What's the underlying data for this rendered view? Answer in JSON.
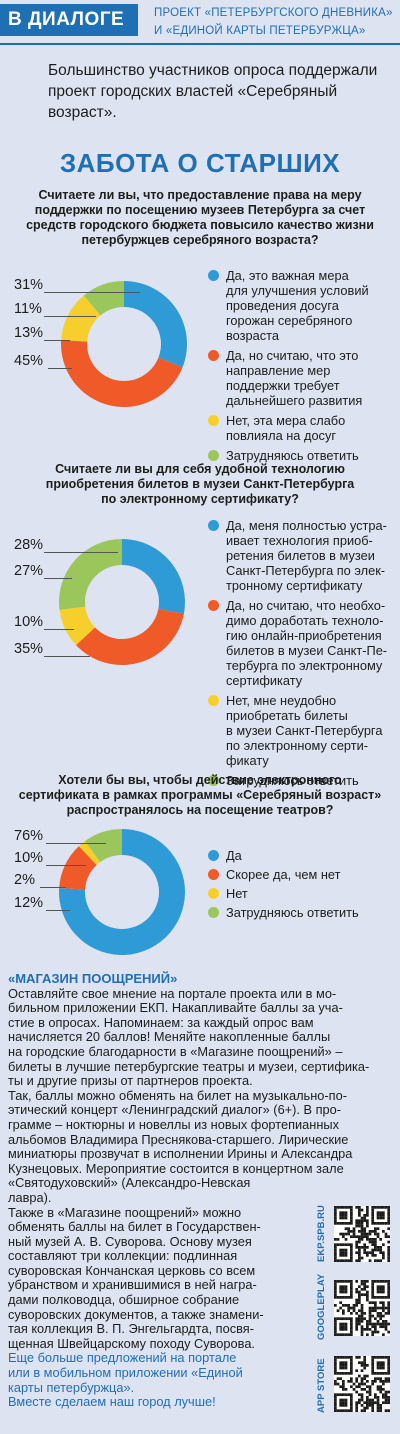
{
  "header": {
    "tag": "В ДИАЛОГЕ",
    "project_line1": "ПРОЕКТ «ПЕТЕРБУРГСКОГО ДНЕВНИКА»",
    "project_line2": "И «ЕДИНОЙ КАРТЫ ПЕТЕРБУРЖЦА»"
  },
  "lead": "Большинство участников опроса поддержали проект городских властей «Серебряный возраст».",
  "title": "ЗАБОТА О СТАРШИХ",
  "colors": {
    "blue": "#2f9bd6",
    "orange": "#f05a28",
    "yellow": "#f7cf2d",
    "green": "#9ac65b",
    "accent": "#1f6fb5"
  },
  "chart_data": [
    {
      "type": "pie",
      "title": "Считаете ли вы, что предоставление права на меру поддержки по посещению музеев Петербурга за счет средств городского бюджета повысило качество жизни петербуржцев серебряного возраста?",
      "series": [
        {
          "name": "Да, это важная мера для улучшения условий проведения досуга горожан серебряного возраста",
          "value": 31,
          "label": "31%"
        },
        {
          "name": "Да, но считаю, что это направление мер поддержки требует дальнейшего развития",
          "value": 45,
          "label": "45%"
        },
        {
          "name": "Нет, эта мера слабо повлияла на досуг",
          "value": 13,
          "label": "13%"
        },
        {
          "name": "Затрудняюсь ответить",
          "value": 11,
          "label": "11%"
        }
      ]
    },
    {
      "type": "pie",
      "title": "Считаете ли вы для себя удобной технологию приобретения билетов в музеи Санкт-Петербурга по электронному сертификату?",
      "series": [
        {
          "name": "Да, меня полностью устраивает технология приобретения билетов в музеи Санкт-Петербурга по электронному сертификату",
          "value": 28,
          "label": "28%"
        },
        {
          "name": "Да, но считаю, что необходимо доработать технологию онлайн-приобретения билетов в музеи Санкт-Петербурга по электронному сертификату",
          "value": 35,
          "label": "35%"
        },
        {
          "name": "Нет, мне неудобно приобретать билеты в музеи Санкт-Петербурга по электронному сертификату",
          "value": 10,
          "label": "10%"
        },
        {
          "name": "Затрудняюсь ответить",
          "value": 27,
          "label": "27%"
        }
      ]
    },
    {
      "type": "pie",
      "title": "Хотели бы вы, чтобы действие электронного сертификата в рамках программы «Серебряный возраст» распространялось на посещение театров?",
      "series": [
        {
          "name": "Да",
          "value": 76,
          "label": "76%"
        },
        {
          "name": "Скорее да, чем нет",
          "value": 12,
          "label": "12%"
        },
        {
          "name": "Нет",
          "value": 2,
          "label": "2%"
        },
        {
          "name": "Затрудняюсь ответить",
          "value": 10,
          "label": "10%"
        }
      ]
    }
  ],
  "q1": {
    "question_lines": [
      "Считаете ли вы, что предоставление права на меру",
      "поддержки по посещению музеев Петербурга за счет",
      "средств городского бюджета повысило качество жизни",
      "петербуржцев серебряного возраста?"
    ],
    "legend": [
      [
        "Да, это важная мера",
        "для улучшения условий",
        "проведения досуга",
        "горожан серебряного",
        "возраста"
      ],
      [
        "Да, но считаю, что это",
        "направление мер",
        "поддержки требует",
        "дальнейшего развития"
      ],
      [
        "Нет, эта мера слабо",
        "повлияла на досуг"
      ],
      [
        "Затрудняюсь ответить"
      ]
    ]
  },
  "q2": {
    "question_lines": [
      "Считаете ли вы для себя удобной технологию",
      "приобретения билетов в музеи Санкт-Петербурга",
      "по электронному сертификату?"
    ],
    "legend": [
      [
        "Да, меня полностью устра-",
        "ивает технология приоб-",
        "ретения билетов в музеи",
        "Санкт-Петербурга по элек-",
        "тронному сертификату"
      ],
      [
        "Да, но считаю, что необхо-",
        "димо доработать техноло-",
        "гию онлайн-приобретения",
        "билетов в музеи Санкт-Пе-",
        "тербурга по электронному",
        "сертификату"
      ],
      [
        "Нет, мне неудобно",
        "приобретать билеты",
        "в музеи Санкт-Петербурга",
        "по электронному серти-",
        "фикату"
      ],
      [
        "Затрудняюсь ответить"
      ]
    ]
  },
  "q3": {
    "question_lines": [
      "Хотели бы вы, чтобы действие электронного",
      "сертификата в рамках программы «Серебряный возраст»",
      "распространялось на посещение театров?"
    ],
    "legend": [
      [
        "Да"
      ],
      [
        "Скорее да, чем нет"
      ],
      [
        "Нет"
      ],
      [
        "Затрудняюсь ответить"
      ]
    ]
  },
  "shop": {
    "title": "«МАГАЗИН ПООЩРЕНИЙ»",
    "p1_lines": [
      "Оставляйте свое мнение на портале проекта или в мо-",
      "бильном приложении ЕКП. Накапливайте баллы за уча-",
      "стие в опросах. Напоминаем: за каждый опрос вам",
      "начисляется 20 баллов! Меняйте накопленные баллы",
      "на городские благодарности в «Магазине поощрений» –",
      "билеты в лучшие петербургские театры и музеи, сертифика-",
      "ты и другие призы от партнеров проекта."
    ],
    "p2_lines": [
      "Так, баллы можно обменять на билет на музыкально-по-",
      "этический концерт «Ленинградский диалог» (6+). В про-",
      "грамме – ноктюрны и новеллы из новых фортепианных",
      "альбомов Владимира Преснякова-старшего. Лирические",
      "миниатюры прозвучат в исполнении Ирины и Александра",
      "Кузнецовых. Мероприятие состоится в концертном зале",
      "«Святодуховский» (Александро-Невская",
      "лавра)."
    ],
    "p3_lines": [
      "Также в «Магазине поощрений» можно",
      "обменять баллы на билет в Государствен-",
      "ный музей А. В. Суворова. Основу музея",
      "составляют три коллекции: подлинная",
      "суворовская Кончанская церковь со всем",
      "убранством и хранившимися в ней награ-",
      "дами полководца, обширное собрание",
      "суворовских документов, а также знамени-",
      "тая коллекция В. П. Энгельгардта, посвя-",
      "щенная Швейцарскому походу Суворова."
    ],
    "p4_lines": [
      "Еще больше предложений на портале",
      "или в мобильном приложении «Единой",
      "карты петербуржца».",
      "Вместе сделаем наш город лучше!"
    ]
  },
  "qr": [
    {
      "label": "EKP.SPB.RU",
      "icon": "qr-code-icon"
    },
    {
      "label": "GOOGLEPLAY",
      "icon": "qr-code-icon"
    },
    {
      "label": "APP STORE",
      "icon": "qr-code-icon"
    }
  ]
}
